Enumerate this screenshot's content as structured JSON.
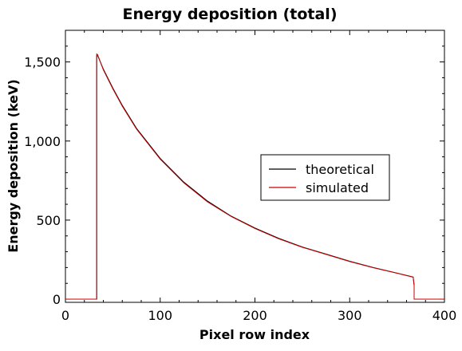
{
  "chart_data": {
    "type": "line",
    "title": "Energy deposition (total)",
    "xlabel": "Pixel row index",
    "ylabel": "Energy deposition (keV)",
    "xlim": [
      0,
      400
    ],
    "ylim": [
      -20,
      1700
    ],
    "x_ticks": [
      0,
      100,
      200,
      300,
      400
    ],
    "x_tick_labels": [
      "0",
      "100",
      "200",
      "300",
      "400"
    ],
    "y_ticks": [
      0,
      500,
      1000,
      1500
    ],
    "y_tick_labels": [
      "0",
      "500",
      "1,000",
      "1,500"
    ],
    "grid": false,
    "legend_position": "center-right",
    "series": [
      {
        "name": "theoretical",
        "color": "#000000",
        "x": [
          0,
          33,
          33,
          34,
          40,
          50,
          60,
          75,
          100,
          125,
          150,
          175,
          200,
          225,
          250,
          275,
          300,
          325,
          350,
          367,
          368,
          368,
          400
        ],
        "values": [
          0,
          0,
          1540,
          1540,
          1455,
          1335,
          1225,
          1080,
          890,
          740,
          620,
          525,
          450,
          385,
          330,
          285,
          240,
          200,
          165,
          140,
          90,
          0,
          0
        ]
      },
      {
        "name": "simulated",
        "color": "#cc0000",
        "x": [
          0,
          33,
          33,
          34,
          40,
          50,
          60,
          75,
          100,
          125,
          150,
          175,
          200,
          225,
          250,
          275,
          300,
          325,
          350,
          367,
          368,
          368,
          400
        ],
        "values": [
          0,
          0,
          1550,
          1545,
          1450,
          1330,
          1220,
          1075,
          885,
          735,
          615,
          522,
          447,
          382,
          328,
          283,
          238,
          199,
          164,
          139,
          85,
          0,
          0
        ]
      }
    ]
  }
}
